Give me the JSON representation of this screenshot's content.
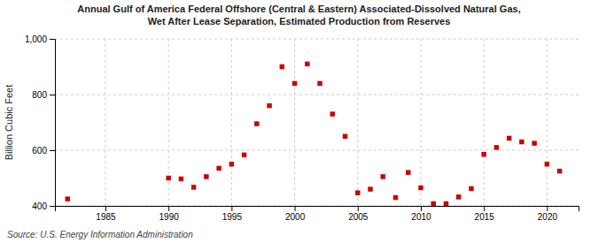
{
  "chart_data": {
    "type": "scatter",
    "title": [
      "Annual Gulf of America Federal Offshore (Central & Eastern) Associated-Dissolved Natural Gas,",
      "Wet After Lease Separation, Estimated Production from Reserves"
    ],
    "y_label": "Billion Cubic Feet",
    "annotations": [
      "Source: U.S. Energy Information Administration"
    ],
    "x": [
      1982,
      1990,
      1991,
      1992,
      1993,
      1994,
      1995,
      1996,
      1997,
      1998,
      1999,
      2000,
      2001,
      2002,
      2003,
      2004,
      2005,
      2006,
      2007,
      2008,
      2009,
      2010,
      2011,
      2012,
      2013,
      2014,
      2015,
      2016,
      2017,
      2018,
      2019,
      2020,
      2021
    ],
    "values": [
      425,
      500,
      497,
      467,
      505,
      535,
      550,
      583,
      695,
      760,
      900,
      840,
      910,
      840,
      730,
      650,
      447,
      460,
      505,
      430,
      520,
      465,
      408,
      408,
      432,
      462,
      585,
      610,
      643,
      630,
      625,
      550,
      525
    ],
    "color": "#cc0000",
    "marker": "square",
    "xlim": [
      1981,
      2022.5
    ],
    "xticks": [
      1985,
      1990,
      1995,
      2000,
      2005,
      2010,
      2015,
      2020
    ],
    "ylim": [
      400,
      1000
    ],
    "yticks": [
      400,
      600,
      800,
      {
        "value": 1000,
        "label": "1,000"
      }
    ],
    "grid": true
  }
}
